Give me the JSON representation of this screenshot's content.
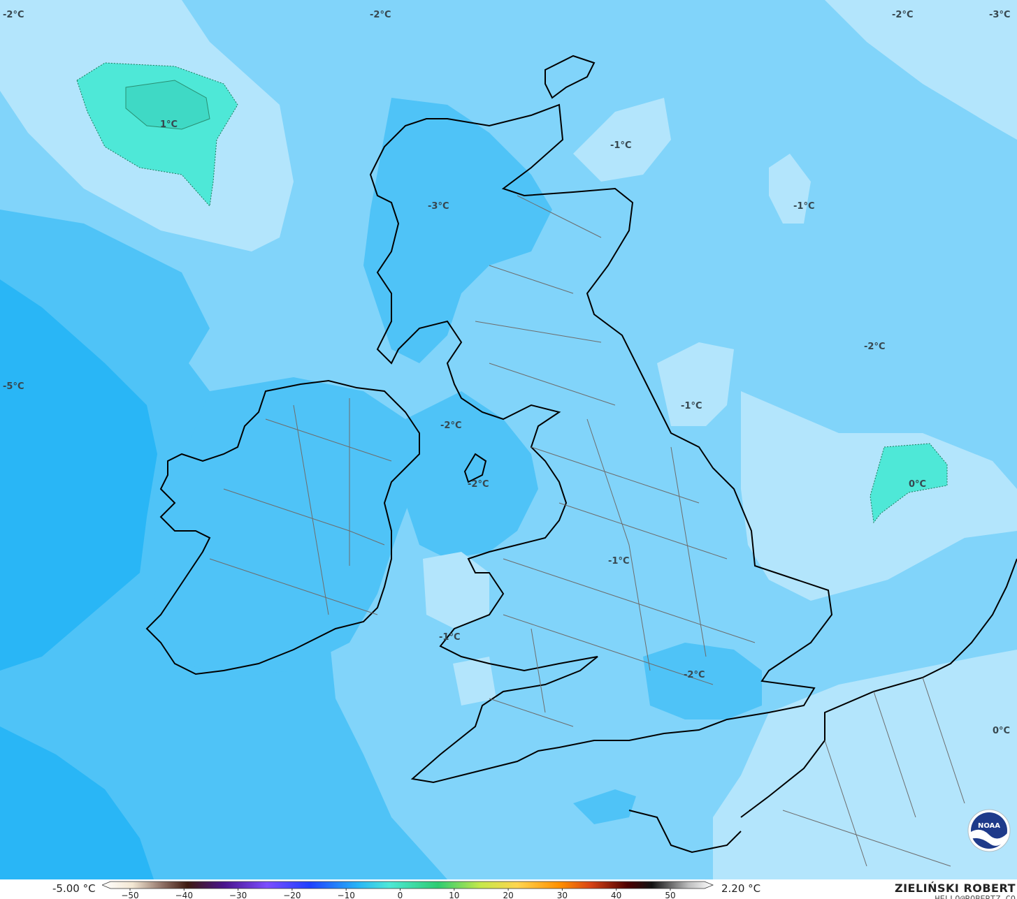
{
  "map": {
    "temperature_labels": [
      {
        "id": "nw-corner",
        "text": "-2°C"
      },
      {
        "id": "north-center",
        "text": "-2°C"
      },
      {
        "id": "ne-1",
        "text": "-2°C"
      },
      {
        "id": "ne-corner",
        "text": "-3°C"
      },
      {
        "id": "atlantic-warm",
        "text": "1°C"
      },
      {
        "id": "north-sea-1",
        "text": "-1°C"
      },
      {
        "id": "highlands",
        "text": "-3°C"
      },
      {
        "id": "north-sea-2",
        "text": "-1°C"
      },
      {
        "id": "north-sea-3",
        "text": "-2°C"
      },
      {
        "id": "atlantic-west",
        "text": "-5°C"
      },
      {
        "id": "north-sea-4",
        "text": "-1°C"
      },
      {
        "id": "irish-sea-n",
        "text": "-2°C"
      },
      {
        "id": "north-sea-warm",
        "text": "0°C"
      },
      {
        "id": "irish-sea-s",
        "text": "-2°C"
      },
      {
        "id": "midlands",
        "text": "-1°C"
      },
      {
        "id": "pembroke",
        "text": "-1°C"
      },
      {
        "id": "london",
        "text": "-2°C"
      },
      {
        "id": "benelux",
        "text": "0°C"
      }
    ]
  },
  "colorbar": {
    "min_label": "-5.00 °C",
    "max_label": "2.20 °C",
    "ticks": [
      "−50",
      "−40",
      "−30",
      "−20",
      "−10",
      "0",
      "10",
      "20",
      "30",
      "40",
      "50"
    ]
  },
  "credits": {
    "author": "ZIELIŃSKI ROBERT",
    "email": "HELLO@ROBERTZ.CO",
    "logo_text": "NOAA"
  }
}
